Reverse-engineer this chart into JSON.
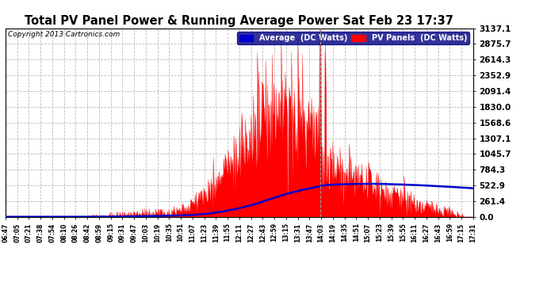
{
  "title": "Total PV Panel Power & Running Average Power Sat Feb 23 17:37",
  "copyright": "Copyright 2013 Cartronics.com",
  "legend_avg": "Average  (DC Watts)",
  "legend_pv": "PV Panels  (DC Watts)",
  "yticks": [
    0.0,
    261.4,
    522.9,
    784.3,
    1045.7,
    1307.1,
    1568.6,
    1830.0,
    2091.4,
    2352.9,
    2614.3,
    2875.7,
    3137.1
  ],
  "ymax": 3137.1,
  "bg_color": "#ffffff",
  "plot_bg_color": "#ffffff",
  "grid_color": "#bbbbbb",
  "bar_color": "#ff0000",
  "avg_color": "#0000cc",
  "vline_color": "#888888",
  "xtick_labels": [
    "06:47",
    "07:05",
    "07:21",
    "07:38",
    "07:54",
    "08:10",
    "08:26",
    "08:42",
    "08:59",
    "09:15",
    "09:31",
    "09:47",
    "10:03",
    "10:19",
    "10:35",
    "10:51",
    "11:07",
    "11:23",
    "11:39",
    "11:55",
    "12:11",
    "12:27",
    "12:43",
    "12:59",
    "13:15",
    "13:31",
    "13:47",
    "14:03",
    "14:19",
    "14:35",
    "14:51",
    "15:07",
    "15:23",
    "15:39",
    "15:55",
    "16:11",
    "16:27",
    "16:43",
    "16:59",
    "17:15",
    "17:31"
  ],
  "n_points": 820
}
